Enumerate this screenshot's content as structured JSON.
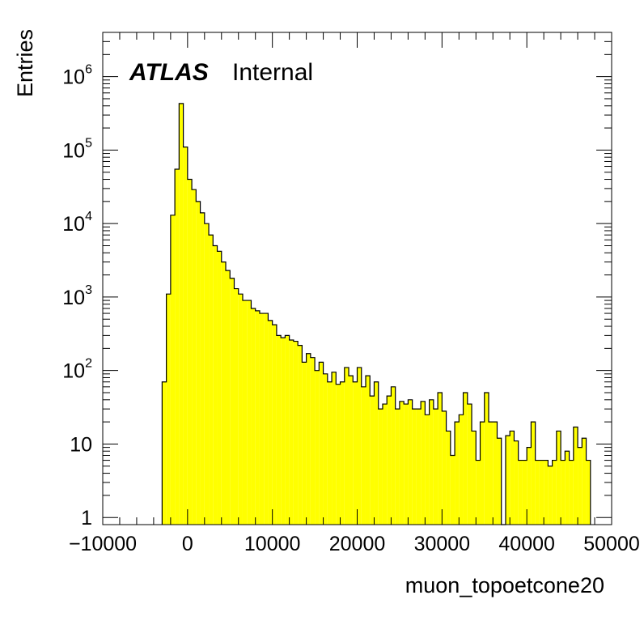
{
  "chart_data": {
    "type": "bar",
    "style": "filled-step-histogram",
    "fill_color": "#ffff00",
    "line_color": "#000000",
    "xlabel": "muon_topoetcone20",
    "ylabel": "Entries",
    "xlim": [
      -10000,
      50000
    ],
    "ylim": [
      0.8,
      4000000
    ],
    "y_scale": "log",
    "x_ticks": [
      {
        "value": -10000,
        "label": "−10000"
      },
      {
        "value": 0,
        "label": "0"
      },
      {
        "value": 10000,
        "label": "10000"
      },
      {
        "value": 20000,
        "label": "20000"
      },
      {
        "value": 30000,
        "label": "30000"
      },
      {
        "value": 40000,
        "label": "40000"
      },
      {
        "value": 50000,
        "label": "50000"
      }
    ],
    "y_ticks": [
      {
        "value": 1,
        "base": "1",
        "exp": ""
      },
      {
        "value": 10,
        "base": "10",
        "exp": ""
      },
      {
        "value": 100,
        "base": "10",
        "exp": "2"
      },
      {
        "value": 1000,
        "base": "10",
        "exp": "3"
      },
      {
        "value": 10000,
        "base": "10",
        "exp": "4"
      },
      {
        "value": 100000,
        "base": "10",
        "exp": "5"
      },
      {
        "value": 1000000,
        "base": "10",
        "exp": "6"
      }
    ],
    "grid": false,
    "bin_width": 500,
    "bin_start": -3000,
    "values": [
      70,
      1100,
      13000,
      55000,
      430000,
      110000,
      40000,
      29000,
      20000,
      14000,
      10000,
      7000,
      5000,
      4200,
      3000,
      2300,
      1800,
      1300,
      1100,
      900,
      900,
      700,
      650,
      600,
      600,
      480,
      420,
      300,
      280,
      300,
      260,
      250,
      220,
      130,
      170,
      150,
      100,
      130,
      90,
      70,
      95,
      65,
      70,
      110,
      85,
      70,
      110,
      60,
      85,
      45,
      70,
      30,
      35,
      45,
      60,
      30,
      38,
      35,
      40,
      30,
      30,
      38,
      25,
      40,
      30,
      50,
      28,
      15,
      7,
      20,
      25,
      50,
      35,
      15,
      6,
      20,
      50,
      20,
      20,
      12,
      0,
      13,
      15,
      11,
      6,
      6,
      9,
      20,
      6,
      6,
      6,
      5,
      6,
      15,
      6,
      8,
      6,
      17,
      9,
      12,
      6
    ],
    "annotations": [
      {
        "text": "ATLAS",
        "style": "bold-italic"
      },
      {
        "text": "Internal",
        "style": "normal"
      }
    ]
  }
}
